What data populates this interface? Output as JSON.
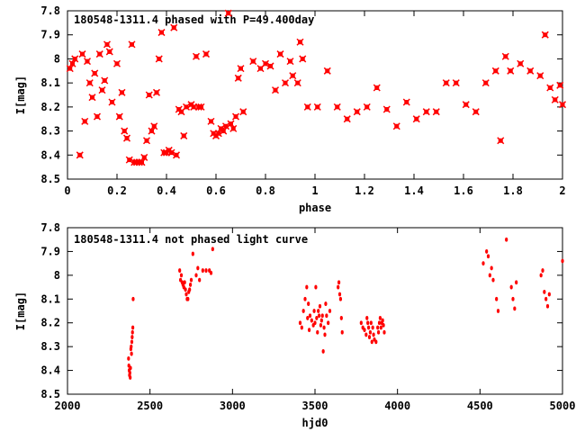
{
  "chart_data": [
    {
      "type": "scatter",
      "title": "180548-1311.4 phased with P=49.400day",
      "xlabel": "phase",
      "ylabel": "I[mag]",
      "xlim": [
        0,
        2
      ],
      "ylim": [
        8.5,
        7.8
      ],
      "y_inverted": true,
      "xticks": [
        0,
        0.2,
        0.4,
        0.6,
        0.8,
        1,
        1.2,
        1.4,
        1.6,
        1.8,
        2
      ],
      "xtick_labels": [
        "0",
        "0.2",
        "0.4",
        "0.6",
        "0.8",
        "1",
        "1.2",
        "1.4",
        "1.6",
        "1.8",
        "2"
      ],
      "yticks": [
        7.8,
        7.9,
        8.0,
        8.1,
        8.2,
        8.3,
        8.4,
        8.5
      ],
      "ytick_labels": [
        "7.8",
        "7.9",
        "8",
        "8.1",
        "8.2",
        "8.3",
        "8.4",
        "8.5"
      ],
      "marker_color": "#ff0000",
      "grid": false,
      "series": [
        {
          "points": [
            [
              0.01,
              8.04
            ],
            [
              0.02,
              8.02
            ],
            [
              0.03,
              8.0
            ],
            [
              0.05,
              8.4
            ],
            [
              0.06,
              7.98
            ],
            [
              0.07,
              8.26
            ],
            [
              0.08,
              8.01
            ],
            [
              0.09,
              8.1
            ],
            [
              0.1,
              8.16
            ],
            [
              0.11,
              8.06
            ],
            [
              0.12,
              8.24
            ],
            [
              0.13,
              7.98
            ],
            [
              0.14,
              8.13
            ],
            [
              0.15,
              8.09
            ],
            [
              0.16,
              7.94
            ],
            [
              0.17,
              7.97
            ],
            [
              0.18,
              8.18
            ],
            [
              0.2,
              8.02
            ],
            [
              0.21,
              8.24
            ],
            [
              0.22,
              8.14
            ],
            [
              0.23,
              8.3
            ],
            [
              0.24,
              8.33
            ],
            [
              0.25,
              8.42
            ],
            [
              0.26,
              7.94
            ],
            [
              0.27,
              8.43
            ],
            [
              0.28,
              8.43
            ],
            [
              0.29,
              8.43
            ],
            [
              0.3,
              8.43
            ],
            [
              0.31,
              8.41
            ],
            [
              0.32,
              8.34
            ],
            [
              0.33,
              8.15
            ],
            [
              0.34,
              8.3
            ],
            [
              0.35,
              8.28
            ],
            [
              0.36,
              8.14
            ],
            [
              0.37,
              8.0
            ],
            [
              0.38,
              7.89
            ],
            [
              0.39,
              8.39
            ],
            [
              0.4,
              8.39
            ],
            [
              0.41,
              8.38
            ],
            [
              0.42,
              8.39
            ],
            [
              0.43,
              7.87
            ],
            [
              0.44,
              8.4
            ],
            [
              0.45,
              8.21
            ],
            [
              0.46,
              8.22
            ],
            [
              0.47,
              8.32
            ],
            [
              0.48,
              8.2
            ],
            [
              0.5,
              8.19
            ],
            [
              0.51,
              8.2
            ],
            [
              0.52,
              7.99
            ],
            [
              0.53,
              8.2
            ],
            [
              0.54,
              8.2
            ],
            [
              0.56,
              7.98
            ],
            [
              0.58,
              8.26
            ],
            [
              0.59,
              8.31
            ],
            [
              0.6,
              8.32
            ],
            [
              0.61,
              8.31
            ],
            [
              0.62,
              8.29
            ],
            [
              0.63,
              8.3
            ],
            [
              0.64,
              8.28
            ],
            [
              0.65,
              7.81
            ],
            [
              0.66,
              8.27
            ],
            [
              0.67,
              8.29
            ],
            [
              0.68,
              8.24
            ],
            [
              0.69,
              8.08
            ],
            [
              0.7,
              8.04
            ],
            [
              0.71,
              8.22
            ],
            [
              0.75,
              8.01
            ],
            [
              0.78,
              8.04
            ],
            [
              0.8,
              8.02
            ],
            [
              0.82,
              8.03
            ],
            [
              0.84,
              8.13
            ],
            [
              0.86,
              7.98
            ],
            [
              0.88,
              8.1
            ],
            [
              0.9,
              8.01
            ],
            [
              0.91,
              8.07
            ],
            [
              0.93,
              8.1
            ],
            [
              0.94,
              7.93
            ],
            [
              0.95,
              8.0
            ],
            [
              0.97,
              8.2
            ],
            [
              1.01,
              8.2
            ],
            [
              1.05,
              8.05
            ],
            [
              1.09,
              8.2
            ],
            [
              1.13,
              8.25
            ],
            [
              1.17,
              8.22
            ],
            [
              1.21,
              8.2
            ],
            [
              1.25,
              8.12
            ],
            [
              1.29,
              8.21
            ],
            [
              1.33,
              8.28
            ],
            [
              1.37,
              8.18
            ],
            [
              1.41,
              8.25
            ],
            [
              1.45,
              8.22
            ],
            [
              1.49,
              8.22
            ],
            [
              1.53,
              8.1
            ],
            [
              1.57,
              8.1
            ],
            [
              1.61,
              8.19
            ],
            [
              1.65,
              8.22
            ],
            [
              1.69,
              8.1
            ],
            [
              1.73,
              8.05
            ],
            [
              1.75,
              8.34
            ],
            [
              1.77,
              7.99
            ],
            [
              1.79,
              8.05
            ],
            [
              1.83,
              8.02
            ],
            [
              1.87,
              8.05
            ],
            [
              1.91,
              8.07
            ],
            [
              1.93,
              7.9
            ],
            [
              1.95,
              8.12
            ],
            [
              1.97,
              8.17
            ],
            [
              1.99,
              8.11
            ],
            [
              2.0,
              8.19
            ]
          ]
        }
      ]
    },
    {
      "type": "scatter",
      "title": "180548-1311.4 not phased light curve",
      "xlabel": "hjd0",
      "ylabel": "I[mag]",
      "xlim": [
        2000,
        5000
      ],
      "ylim": [
        8.5,
        7.8
      ],
      "y_inverted": true,
      "xticks": [
        2000,
        2500,
        3000,
        3500,
        4000,
        4500,
        5000
      ],
      "xtick_labels": [
        "2000",
        "2500",
        "3000",
        "3500",
        "4000",
        "4500",
        "5000"
      ],
      "yticks": [
        7.8,
        7.9,
        8.0,
        8.1,
        8.2,
        8.3,
        8.4,
        8.5
      ],
      "ytick_labels": [
        "7.8",
        "7.9",
        "8",
        "8.1",
        "8.2",
        "8.3",
        "8.4",
        "8.5"
      ],
      "marker_color": "#ff0000",
      "grid": false,
      "series": [
        {
          "points": [
            [
              2370,
              8.35
            ],
            [
              2372,
              8.38
            ],
            [
              2374,
              8.4
            ],
            [
              2376,
              8.42
            ],
            [
              2378,
              8.41
            ],
            [
              2380,
              8.43
            ],
            [
              2382,
              8.39
            ],
            [
              2384,
              8.31
            ],
            [
              2386,
              8.3
            ],
            [
              2388,
              8.33
            ],
            [
              2390,
              8.28
            ],
            [
              2392,
              8.26
            ],
            [
              2394,
              8.24
            ],
            [
              2396,
              8.22
            ],
            [
              2398,
              8.1
            ],
            [
              2680,
              7.98
            ],
            [
              2685,
              8.02
            ],
            [
              2690,
              8.0
            ],
            [
              2695,
              8.03
            ],
            [
              2700,
              8.04
            ],
            [
              2705,
              8.05
            ],
            [
              2710,
              8.03
            ],
            [
              2715,
              8.06
            ],
            [
              2720,
              8.08
            ],
            [
              2725,
              8.1
            ],
            [
              2730,
              8.1
            ],
            [
              2735,
              8.07
            ],
            [
              2740,
              8.06
            ],
            [
              2745,
              8.04
            ],
            [
              2750,
              8.02
            ],
            [
              2760,
              7.91
            ],
            [
              2780,
              8.0
            ],
            [
              2790,
              7.97
            ],
            [
              2800,
              8.02
            ],
            [
              2820,
              7.98
            ],
            [
              2840,
              7.98
            ],
            [
              2860,
              7.98
            ],
            [
              2870,
              7.99
            ],
            [
              2880,
              7.89
            ],
            [
              3410,
              8.2
            ],
            [
              3420,
              8.22
            ],
            [
              3430,
              8.15
            ],
            [
              3440,
              8.1
            ],
            [
              3450,
              8.05
            ],
            [
              3455,
              8.18
            ],
            [
              3460,
              8.12
            ],
            [
              3465,
              8.23
            ],
            [
              3470,
              8.17
            ],
            [
              3480,
              8.19
            ],
            [
              3490,
              8.21
            ],
            [
              3495,
              8.15
            ],
            [
              3500,
              8.2
            ],
            [
              3505,
              8.05
            ],
            [
              3510,
              8.18
            ],
            [
              3515,
              8.24
            ],
            [
              3520,
              8.15
            ],
            [
              3525,
              8.17
            ],
            [
              3530,
              8.13
            ],
            [
              3535,
              8.21
            ],
            [
              3540,
              8.19
            ],
            [
              3545,
              8.17
            ],
            [
              3550,
              8.32
            ],
            [
              3555,
              8.22
            ],
            [
              3560,
              8.25
            ],
            [
              3565,
              8.12
            ],
            [
              3570,
              8.17
            ],
            [
              3580,
              8.2
            ],
            [
              3590,
              8.15
            ],
            [
              3640,
              8.05
            ],
            [
              3645,
              8.03
            ],
            [
              3650,
              8.08
            ],
            [
              3655,
              8.1
            ],
            [
              3660,
              8.18
            ],
            [
              3665,
              8.24
            ],
            [
              3780,
              8.2
            ],
            [
              3790,
              8.22
            ],
            [
              3800,
              8.23
            ],
            [
              3810,
              8.25
            ],
            [
              3815,
              8.18
            ],
            [
              3820,
              8.2
            ],
            [
              3825,
              8.22
            ],
            [
              3830,
              8.26
            ],
            [
              3835,
              8.24
            ],
            [
              3840,
              8.2
            ],
            [
              3845,
              8.28
            ],
            [
              3850,
              8.22
            ],
            [
              3855,
              8.25
            ],
            [
              3860,
              8.27
            ],
            [
              3870,
              8.28
            ],
            [
              3880,
              8.22
            ],
            [
              3885,
              8.24
            ],
            [
              3890,
              8.2
            ],
            [
              3895,
              8.18
            ],
            [
              3900,
              8.22
            ],
            [
              3905,
              8.2
            ],
            [
              3910,
              8.19
            ],
            [
              3915,
              8.21
            ],
            [
              3920,
              8.24
            ],
            [
              4520,
              7.95
            ],
            [
              4540,
              7.9
            ],
            [
              4550,
              7.92
            ],
            [
              4560,
              8.0
            ],
            [
              4570,
              7.97
            ],
            [
              4580,
              8.02
            ],
            [
              4600,
              8.1
            ],
            [
              4610,
              8.15
            ],
            [
              4660,
              7.85
            ],
            [
              4690,
              8.05
            ],
            [
              4700,
              8.1
            ],
            [
              4710,
              8.14
            ],
            [
              4720,
              8.03
            ],
            [
              4870,
              8.0
            ],
            [
              4880,
              7.98
            ],
            [
              4890,
              8.07
            ],
            [
              4900,
              8.1
            ],
            [
              4910,
              8.13
            ],
            [
              4920,
              8.08
            ],
            [
              5000,
              7.94
            ]
          ]
        }
      ]
    }
  ]
}
